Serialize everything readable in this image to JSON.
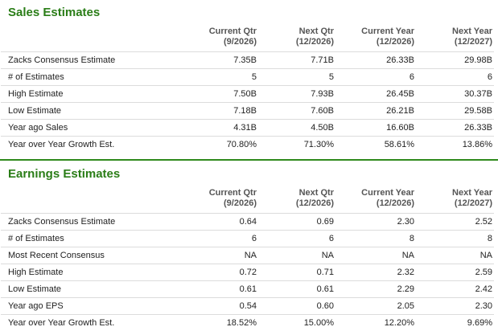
{
  "sales": {
    "title": "Sales Estimates",
    "headers": [
      {
        "line1": "Current Qtr",
        "line2": "(9/2026)"
      },
      {
        "line1": "Next Qtr",
        "line2": "(12/2026)"
      },
      {
        "line1": "Current Year",
        "line2": "(12/2026)"
      },
      {
        "line1": "Next Year",
        "line2": "(12/2027)"
      }
    ],
    "rows": [
      {
        "label": "Zacks Consensus Estimate",
        "values": [
          "7.35B",
          "7.71B",
          "26.33B",
          "29.98B"
        ]
      },
      {
        "label": "# of Estimates",
        "values": [
          "5",
          "5",
          "6",
          "6"
        ]
      },
      {
        "label": "High Estimate",
        "values": [
          "7.50B",
          "7.93B",
          "26.45B",
          "30.37B"
        ]
      },
      {
        "label": "Low Estimate",
        "values": [
          "7.18B",
          "7.60B",
          "26.21B",
          "29.58B"
        ]
      },
      {
        "label": "Year ago Sales",
        "values": [
          "4.31B",
          "4.50B",
          "16.60B",
          "26.33B"
        ]
      },
      {
        "label": "Year over Year Growth Est.",
        "values": [
          "70.80%",
          "71.30%",
          "58.61%",
          "13.86%"
        ]
      }
    ]
  },
  "earnings": {
    "title": "Earnings Estimates",
    "headers": [
      {
        "line1": "Current Qtr",
        "line2": "(9/2026)"
      },
      {
        "line1": "Next Qtr",
        "line2": "(12/2026)"
      },
      {
        "line1": "Current Year",
        "line2": "(12/2026)"
      },
      {
        "line1": "Next Year",
        "line2": "(12/2027)"
      }
    ],
    "rows": [
      {
        "label": "Zacks Consensus Estimate",
        "values": [
          "0.64",
          "0.69",
          "2.30",
          "2.52"
        ]
      },
      {
        "label": "# of Estimates",
        "values": [
          "6",
          "6",
          "8",
          "8"
        ]
      },
      {
        "label": "Most Recent Consensus",
        "values": [
          "NA",
          "NA",
          "NA",
          "NA"
        ]
      },
      {
        "label": "High Estimate",
        "values": [
          "0.72",
          "0.71",
          "2.32",
          "2.59"
        ]
      },
      {
        "label": "Low Estimate",
        "values": [
          "0.61",
          "0.61",
          "2.29",
          "2.42"
        ]
      },
      {
        "label": "Year ago EPS",
        "values": [
          "0.54",
          "0.60",
          "2.05",
          "2.30"
        ]
      },
      {
        "label": "Year over Year Growth Est.",
        "values": [
          "18.52%",
          "15.00%",
          "12.20%",
          "9.69%"
        ]
      }
    ]
  },
  "colors": {
    "accent": "#2a7d17",
    "divider": "#2f8a1c",
    "row_border": "#dcdcdc"
  }
}
